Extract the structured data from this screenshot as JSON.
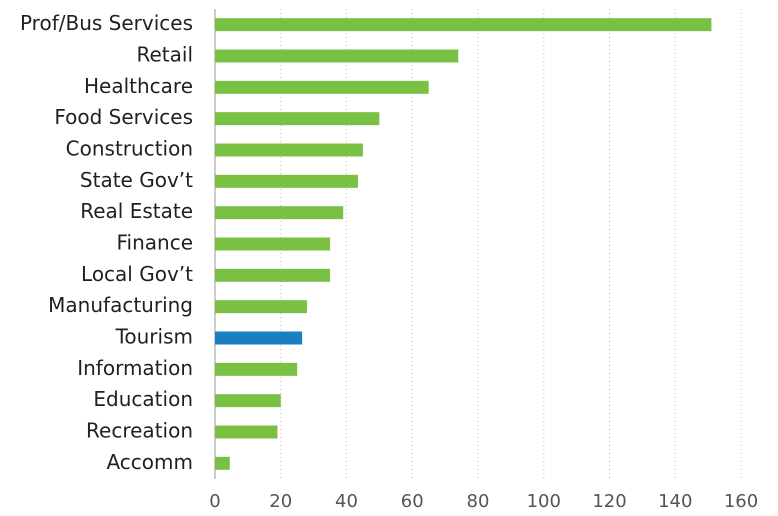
{
  "chart_data": {
    "type": "barh",
    "categories": [
      "Prof/Bus Services",
      "Retail",
      "Healthcare",
      "Food Services",
      "Construction",
      "State Gov’t",
      "Real Estate",
      "Finance",
      "Local Gov’t",
      "Manufacturing",
      "Tourism",
      "Information",
      "Education",
      "Recreation",
      "Accomm"
    ],
    "values": [
      151,
      74,
      65,
      50,
      45,
      43.5,
      39,
      35,
      35,
      28,
      26.5,
      25,
      20,
      19,
      4.5
    ],
    "colors": [
      "#7ac143",
      "#7ac143",
      "#7ac143",
      "#7ac143",
      "#7ac143",
      "#7ac143",
      "#7ac143",
      "#7ac143",
      "#7ac143",
      "#7ac143",
      "#1b7dc2",
      "#7ac143",
      "#7ac143",
      "#7ac143",
      "#7ac143"
    ],
    "xlim": [
      0,
      160
    ],
    "xticks": [
      0,
      20,
      40,
      60,
      80,
      100,
      120,
      140,
      160
    ],
    "grid": true
  }
}
